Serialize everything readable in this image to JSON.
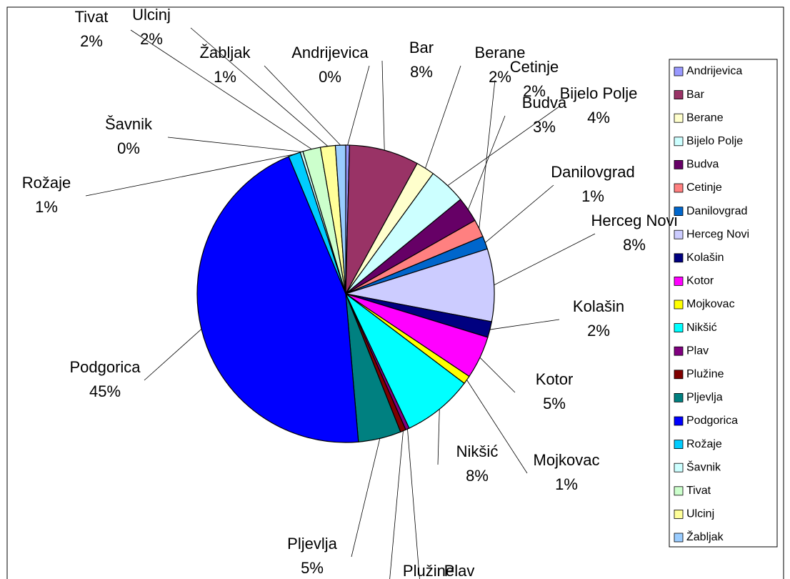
{
  "chart_data": {
    "type": "pie",
    "categories": [
      "Andrijevica",
      "Bar",
      "Berane",
      "Bijelo Polje",
      "Budva",
      "Cetinje",
      "Danilovgrad",
      "Herceg Novi",
      "Kolašin",
      "Kotor",
      "Mojkovac",
      "Nikšić",
      "Plav",
      "Plužine",
      "Pljevlja",
      "Podgorica",
      "Rožaje",
      "Šavnik",
      "Tivat",
      "Ulcinj",
      "Žabljak"
    ],
    "values": [
      0.4,
      7.5,
      2.0,
      4.0,
      2.7,
      1.9,
      1.4,
      7.8,
      1.7,
      4.6,
      0.9,
      7.6,
      0.4,
      0.6,
      4.6,
      44.6,
      1.3,
      0.3,
      1.9,
      1.6,
      1.1
    ],
    "value_labels": [
      "0%",
      "8%",
      "2%",
      "4%",
      "3%",
      "2%",
      "1%",
      "8%",
      "2%",
      "5%",
      "1%",
      "8%",
      null,
      null,
      "5%",
      "45%",
      "1%",
      "0%",
      "2%",
      "2%",
      "1%"
    ],
    "colors": [
      "#9999ff",
      "#993366",
      "#ffffcc",
      "#ccffff",
      "#660066",
      "#ff8080",
      "#0066cc",
      "#ccccff",
      "#000080",
      "#ff00ff",
      "#ffff00",
      "#00ffff",
      "#800080",
      "#800000",
      "#008080",
      "#0000ff",
      "#00ccff",
      "#ccffff",
      "#ccffcc",
      "#ffff99",
      "#99ccff"
    ],
    "legend": "right"
  }
}
